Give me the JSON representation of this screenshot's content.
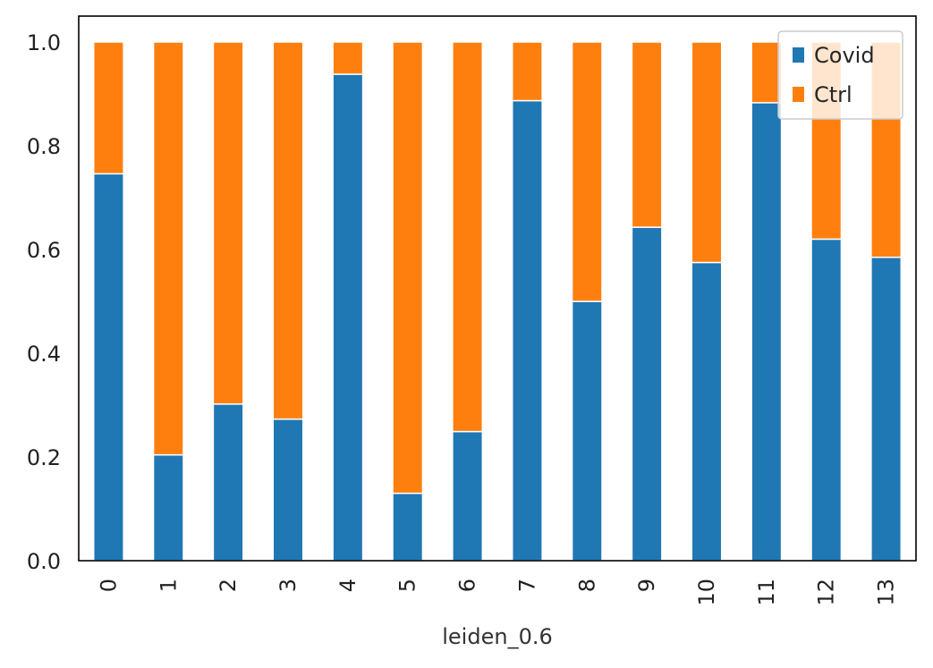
{
  "chart_data": {
    "type": "bar",
    "stacked": true,
    "xlabel": "leiden_0.6",
    "ylabel": "",
    "title": "",
    "ylim": [
      0,
      1.05
    ],
    "yticks": [
      "0.0",
      "0.2",
      "0.4",
      "0.6",
      "0.8",
      "1.0"
    ],
    "grid": false,
    "legend_position": "top-right",
    "categories": [
      "0",
      "1",
      "2",
      "3",
      "4",
      "5",
      "6",
      "7",
      "8",
      "9",
      "10",
      "11",
      "12",
      "13"
    ],
    "series": [
      {
        "name": "Covid",
        "color": "#1f77b4",
        "values": [
          0.746,
          0.204,
          0.302,
          0.273,
          0.938,
          0.13,
          0.249,
          0.887,
          0.5,
          0.643,
          0.575,
          0.883,
          0.62,
          0.585
        ]
      },
      {
        "name": "Ctrl",
        "color": "#ff7f0e",
        "values": [
          0.254,
          0.796,
          0.698,
          0.727,
          0.062,
          0.87,
          0.751,
          0.113,
          0.5,
          0.357,
          0.425,
          0.117,
          0.38,
          0.415
        ]
      }
    ]
  }
}
